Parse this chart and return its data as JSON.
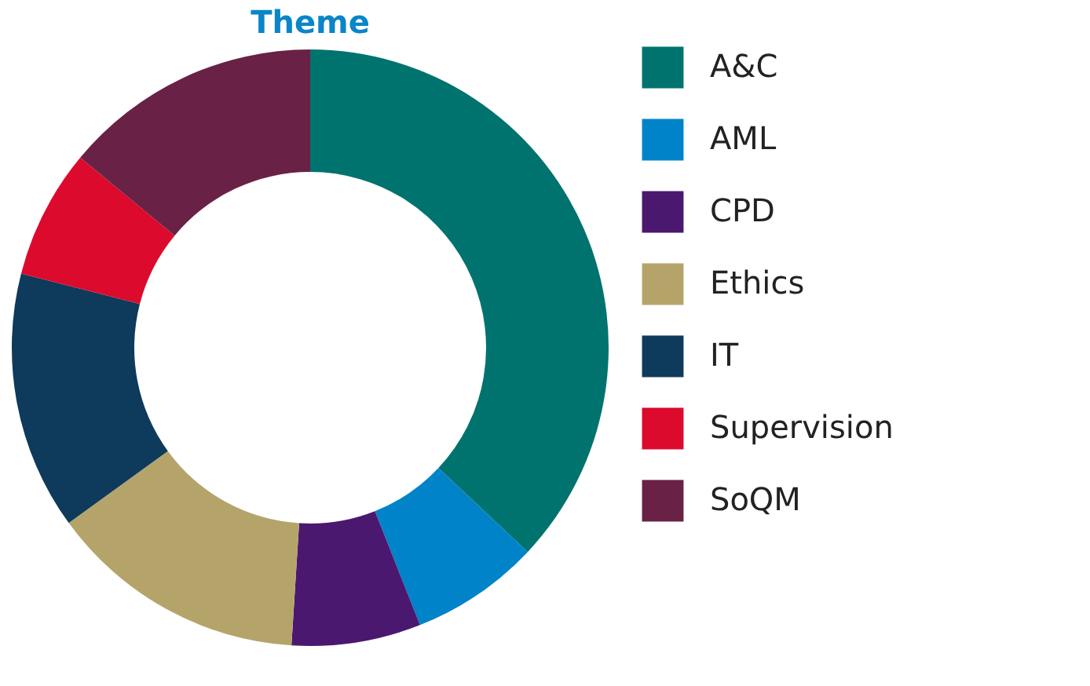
{
  "chart_data": {
    "type": "donut",
    "title": "Theme",
    "categories": [
      "A&C",
      "AML",
      "CPD",
      "Ethics",
      "IT",
      "Supervision",
      "SoQM"
    ],
    "values": [
      37,
      7,
      7,
      14,
      14,
      7,
      14
    ],
    "colors": [
      "#00736f",
      "#0083c8",
      "#4b1870",
      "#b5a46a",
      "#0e3a5c",
      "#dc0a2d",
      "#6a2146"
    ],
    "legend": "right"
  }
}
